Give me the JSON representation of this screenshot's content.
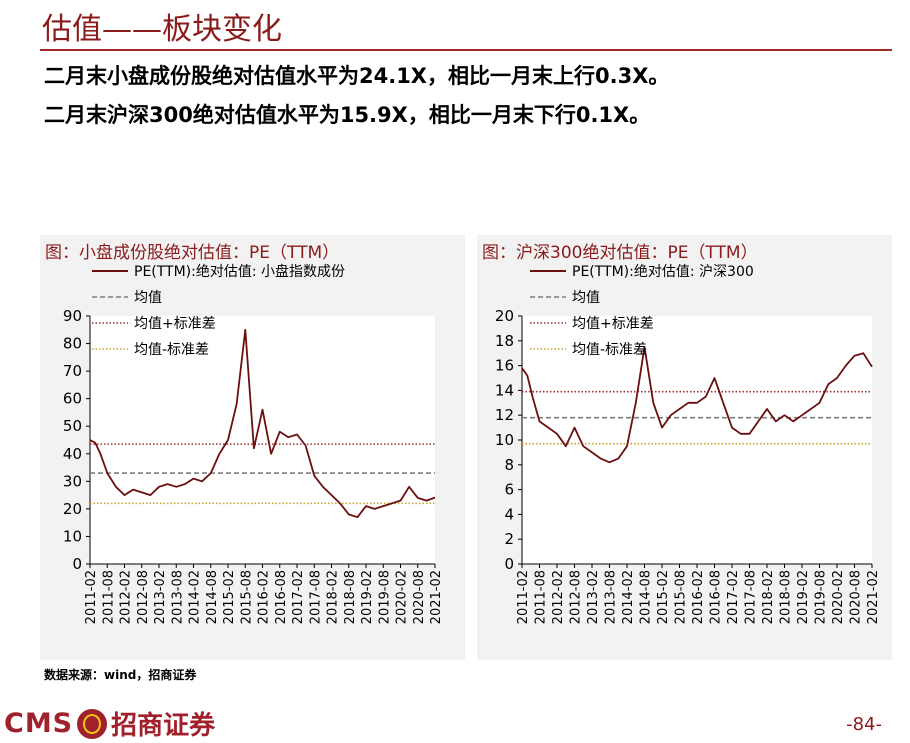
{
  "slide": {
    "title": "估值——板块变化",
    "bullet1": "二月末小盘成份股绝对估值水平为24.1X，相比一月末上行0.3X。",
    "bullet2": "二月末沪深300绝对估值水平为15.9X，相比一月末下行0.1X。",
    "source": "数据来源：wind，招商证券",
    "page": "-84-",
    "logo_text": "CMS",
    "logo_cn": "招商证券"
  },
  "colors": {
    "brand": "#8B1A1A",
    "pe_line": "#6B0F0F",
    "mean": "#7f7f7f",
    "plus_std": "#A03030",
    "minus_std": "#C9A227"
  },
  "chart_data": [
    {
      "type": "line",
      "title": "图：小盘成份股绝对估值：PE（TTM）",
      "ylim": [
        0,
        90
      ],
      "yticks": [
        0,
        10,
        20,
        30,
        40,
        50,
        60,
        70,
        80,
        90
      ],
      "xlabels": [
        "2011-02",
        "2011-08",
        "2012-02",
        "2012-08",
        "2013-02",
        "2013-08",
        "2014-02",
        "2014-08",
        "2015-02",
        "2015-08",
        "2016-02",
        "2016-08",
        "2017-02",
        "2017-08",
        "2018-02",
        "2018-08",
        "2019-02",
        "2019-08",
        "2020-02",
        "2020-08",
        "2021-02"
      ],
      "legend": [
        "PE(TTM):绝对估值: 小盘指数成份",
        "均值",
        "均值+标准差",
        "均值-标准差"
      ],
      "reference": {
        "mean": 33,
        "plus_std": 43.5,
        "minus_std": 22
      },
      "series": [
        {
          "name": "PE(TTM):绝对估值: 小盘指数成份",
          "x": [
            0,
            0.3,
            0.6,
            1,
            1.5,
            2,
            2.5,
            3,
            3.5,
            4,
            4.5,
            5,
            5.5,
            6,
            6.5,
            7,
            7.5,
            8,
            8.5,
            9,
            9.5,
            10,
            10.5,
            11,
            11.5,
            12,
            12.5,
            13,
            13.5,
            14,
            14.5,
            15,
            15.5,
            16,
            16.5,
            17,
            17.5,
            18,
            18.5,
            19,
            19.5,
            20
          ],
          "values": [
            45,
            44,
            40,
            33,
            28,
            25,
            27,
            26,
            25,
            28,
            29,
            28,
            29,
            31,
            30,
            33,
            40,
            45,
            58,
            85,
            42,
            56,
            40,
            48,
            46,
            47,
            43,
            32,
            28,
            25,
            22,
            18,
            17,
            21,
            20,
            21,
            22,
            23,
            28,
            24,
            23,
            24.1
          ]
        }
      ]
    },
    {
      "type": "line",
      "title": "图：沪深300绝对估值：PE（TTM）",
      "ylim": [
        0,
        20
      ],
      "yticks": [
        0,
        2,
        4,
        6,
        8,
        10,
        12,
        14,
        16,
        18,
        20
      ],
      "xlabels": [
        "2011-02",
        "2011-08",
        "2012-02",
        "2012-08",
        "2013-02",
        "2013-08",
        "2014-02",
        "2014-08",
        "2015-02",
        "2015-08",
        "2016-02",
        "2016-08",
        "2017-02",
        "2017-08",
        "2018-02",
        "2018-08",
        "2019-02",
        "2019-08",
        "2020-02",
        "2020-08",
        "2021-02"
      ],
      "legend": [
        "PE(TTM):绝对估值: 沪深300",
        "均值",
        "均值+标准差",
        "均值-标准差"
      ],
      "reference": {
        "mean": 11.8,
        "plus_std": 13.9,
        "minus_std": 9.7
      },
      "series": [
        {
          "name": "PE(TTM):绝对估值: 沪深300",
          "x": [
            0,
            0.3,
            0.6,
            1,
            1.5,
            2,
            2.5,
            3,
            3.5,
            4,
            4.5,
            5,
            5.5,
            6,
            6.5,
            7,
            7.5,
            8,
            8.5,
            9,
            9.5,
            10,
            10.5,
            11,
            11.5,
            12,
            12.5,
            13,
            13.5,
            14,
            14.5,
            15,
            15.5,
            16,
            16.5,
            17,
            17.5,
            18,
            18.5,
            19,
            19.5,
            20
          ],
          "values": [
            15.8,
            15.2,
            13.5,
            11.5,
            11,
            10.5,
            9.5,
            11,
            9.5,
            9,
            8.5,
            8.2,
            8.5,
            9.5,
            13,
            17.5,
            13,
            11,
            12,
            12.5,
            13,
            13,
            13.5,
            15,
            13,
            11,
            10.5,
            10.5,
            11.5,
            12.5,
            11.5,
            12,
            11.5,
            12,
            12.5,
            13,
            14.5,
            15,
            16,
            16.8,
            17,
            15.9
          ]
        }
      ]
    }
  ]
}
